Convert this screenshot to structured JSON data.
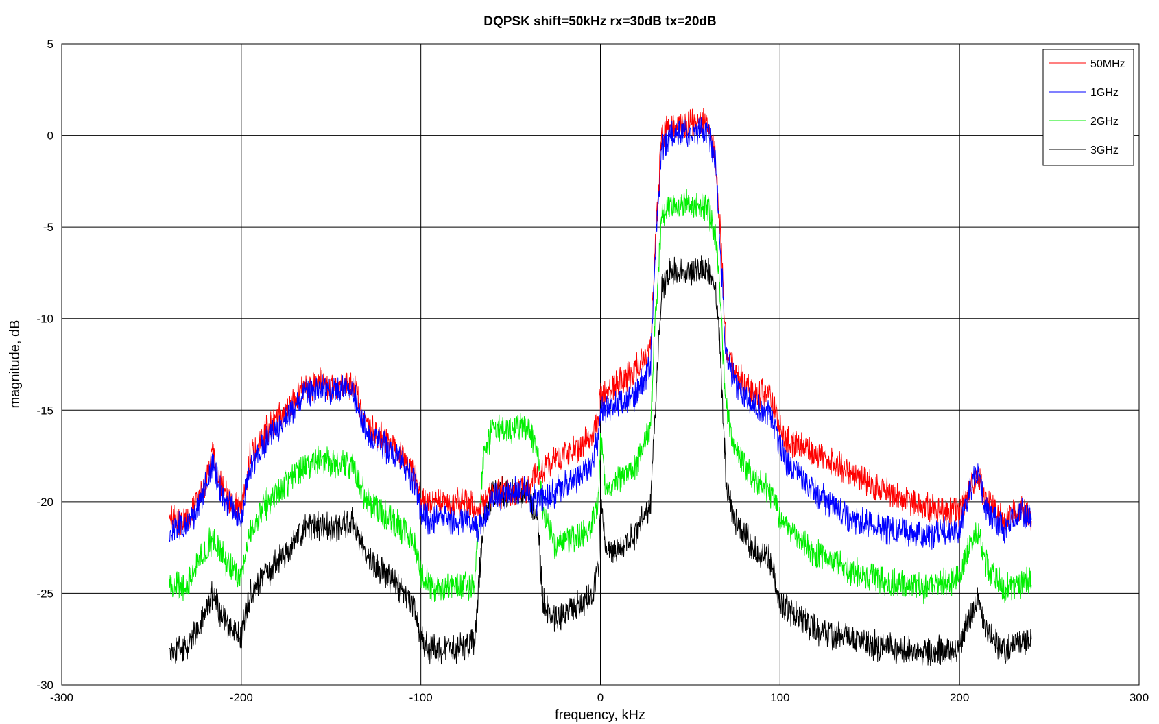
{
  "chart_data": {
    "type": "line",
    "title": "DQPSK shift=50kHz rx=30dB tx=20dB",
    "xlabel": "frequency, kHz",
    "ylabel": "magnitude, dB",
    "xlim": [
      -300,
      300
    ],
    "ylim": [
      -30,
      5
    ],
    "xticks": [
      -300,
      -200,
      -100,
      0,
      100,
      200,
      300
    ],
    "yticks": [
      -30,
      -25,
      -20,
      -15,
      -10,
      -5,
      0,
      5
    ],
    "xtick_labels": [
      "-300",
      "-200",
      "-100",
      "0",
      "100",
      "200",
      "300"
    ],
    "ytick_labels": [
      "-30",
      "-25",
      "-20",
      "-15",
      "-10",
      "-5",
      "0",
      "5"
    ],
    "grid": true,
    "legend_position": "top-right",
    "noise_amplitude_db": 0.7,
    "series": [
      {
        "name": "50MHz",
        "color": "#ff0000",
        "x": [
          -240,
          -230,
          -222,
          -216,
          -212,
          -205,
          -200,
          -195,
          -185,
          -175,
          -165,
          -155,
          -145,
          -138,
          -130,
          -120,
          -110,
          -103,
          -100,
          -95,
          -85,
          -75,
          -68,
          -60,
          -50,
          -42,
          -35,
          -25,
          -15,
          -5,
          -1,
          0,
          3,
          10,
          20,
          28,
          30,
          34,
          40,
          50,
          60,
          64,
          66,
          70,
          75,
          85,
          95,
          100,
          105,
          120,
          140,
          160,
          180,
          200,
          205,
          210,
          215,
          225,
          235,
          240
        ],
        "y": [
          -21.0,
          -21.0,
          -19.5,
          -17.5,
          -19.0,
          -20.0,
          -20.5,
          -17.5,
          -16.0,
          -15.0,
          -13.8,
          -13.5,
          -13.8,
          -13.5,
          -16.0,
          -16.5,
          -17.5,
          -18.5,
          -20.0,
          -20.0,
          -20.0,
          -20.0,
          -20.5,
          -19.5,
          -19.5,
          -19.3,
          -18.5,
          -17.8,
          -17.2,
          -16.5,
          -15.5,
          -14.0,
          -14.0,
          -13.5,
          -12.8,
          -11.5,
          -7.0,
          0.0,
          0.5,
          0.7,
          0.7,
          -1.0,
          -4.0,
          -11.5,
          -13.0,
          -14.0,
          -14.2,
          -16.0,
          -16.8,
          -17.3,
          -18.5,
          -19.5,
          -20.3,
          -20.6,
          -19.5,
          -18.5,
          -20.0,
          -21.0,
          -20.3,
          -21.0
        ]
      },
      {
        "name": "1GHz",
        "color": "#0000ff",
        "x": [
          -240,
          -230,
          -222,
          -216,
          -212,
          -205,
          -200,
          -195,
          -185,
          -175,
          -165,
          -155,
          -145,
          -138,
          -130,
          -120,
          -110,
          -103,
          -100,
          -95,
          -85,
          -75,
          -68,
          -60,
          -50,
          -42,
          -35,
          -25,
          -15,
          -5,
          -1,
          0,
          3,
          10,
          20,
          28,
          30,
          34,
          40,
          50,
          60,
          64,
          66,
          70,
          75,
          85,
          95,
          100,
          105,
          120,
          140,
          160,
          180,
          200,
          205,
          210,
          215,
          225,
          235,
          240
        ],
        "y": [
          -21.5,
          -21.3,
          -19.8,
          -17.8,
          -19.3,
          -20.3,
          -21.0,
          -18.0,
          -16.5,
          -15.5,
          -14.0,
          -13.8,
          -14.0,
          -13.8,
          -16.3,
          -17.0,
          -17.8,
          -19.0,
          -20.5,
          -21.0,
          -21.0,
          -21.0,
          -21.5,
          -19.8,
          -19.5,
          -19.5,
          -20.0,
          -19.5,
          -18.8,
          -18.0,
          -16.5,
          -15.0,
          -15.0,
          -14.7,
          -14.2,
          -12.5,
          -7.5,
          -0.5,
          0.0,
          0.2,
          0.3,
          -1.5,
          -4.5,
          -12.0,
          -13.5,
          -14.8,
          -15.3,
          -17.0,
          -18.0,
          -19.5,
          -21.0,
          -21.5,
          -21.8,
          -21.5,
          -19.5,
          -18.5,
          -20.5,
          -21.5,
          -20.5,
          -21.0
        ]
      },
      {
        "name": "2GHz",
        "color": "#00ee00",
        "x": [
          -240,
          -230,
          -222,
          -216,
          -212,
          -205,
          -200,
          -195,
          -185,
          -175,
          -165,
          -155,
          -145,
          -138,
          -130,
          -120,
          -110,
          -103,
          -100,
          -95,
          -85,
          -75,
          -70,
          -65,
          -60,
          -50,
          -40,
          -35,
          -32,
          -25,
          -15,
          -5,
          -1,
          0,
          3,
          10,
          20,
          28,
          30,
          34,
          40,
          50,
          60,
          64,
          66,
          70,
          75,
          85,
          95,
          100,
          105,
          120,
          140,
          160,
          180,
          200,
          205,
          210,
          215,
          225,
          235,
          240
        ],
        "y": [
          -24.7,
          -24.5,
          -23.0,
          -22.0,
          -22.8,
          -23.8,
          -24.2,
          -21.5,
          -20.0,
          -19.0,
          -18.0,
          -17.7,
          -18.0,
          -18.0,
          -20.0,
          -20.8,
          -21.5,
          -22.5,
          -24.0,
          -24.7,
          -24.7,
          -24.5,
          -24.5,
          -17.5,
          -16.0,
          -16.0,
          -16.0,
          -17.0,
          -20.5,
          -22.5,
          -22.0,
          -21.5,
          -20.0,
          -16.5,
          -19.5,
          -18.8,
          -18.0,
          -16.0,
          -11.0,
          -4.5,
          -3.8,
          -3.8,
          -4.0,
          -5.5,
          -7.5,
          -15.0,
          -17.0,
          -18.8,
          -19.5,
          -21.0,
          -21.5,
          -22.8,
          -23.8,
          -24.3,
          -24.8,
          -24.2,
          -22.5,
          -21.5,
          -23.5,
          -24.8,
          -24.5,
          -24.0
        ]
      },
      {
        "name": "3GHz",
        "color": "#000000",
        "x": [
          -240,
          -230,
          -222,
          -216,
          -212,
          -205,
          -200,
          -195,
          -185,
          -175,
          -165,
          -155,
          -145,
          -138,
          -130,
          -120,
          -110,
          -103,
          -100,
          -95,
          -85,
          -75,
          -70,
          -65,
          -60,
          -50,
          -40,
          -35,
          -32,
          -25,
          -15,
          -5,
          -1,
          0,
          3,
          10,
          20,
          28,
          30,
          34,
          40,
          50,
          60,
          64,
          66,
          70,
          75,
          85,
          95,
          100,
          105,
          120,
          140,
          160,
          180,
          200,
          205,
          210,
          215,
          225,
          235,
          240
        ],
        "y": [
          -28.2,
          -28.0,
          -26.5,
          -25.0,
          -26.0,
          -27.0,
          -27.3,
          -25.0,
          -23.8,
          -22.8,
          -21.5,
          -21.3,
          -21.5,
          -21.0,
          -23.0,
          -24.0,
          -25.0,
          -26.0,
          -27.5,
          -28.0,
          -28.0,
          -28.0,
          -27.5,
          -21.0,
          -19.5,
          -19.5,
          -19.5,
          -21.0,
          -25.5,
          -26.5,
          -25.8,
          -25.2,
          -23.5,
          -20.0,
          -22.5,
          -22.5,
          -21.8,
          -20.0,
          -16.0,
          -8.5,
          -7.3,
          -7.3,
          -7.3,
          -8.5,
          -10.5,
          -19.0,
          -21.0,
          -22.5,
          -23.3,
          -25.5,
          -26.0,
          -27.0,
          -27.5,
          -28.0,
          -28.2,
          -28.0,
          -26.5,
          -25.5,
          -27.0,
          -28.2,
          -27.5,
          -27.5
        ]
      }
    ]
  }
}
